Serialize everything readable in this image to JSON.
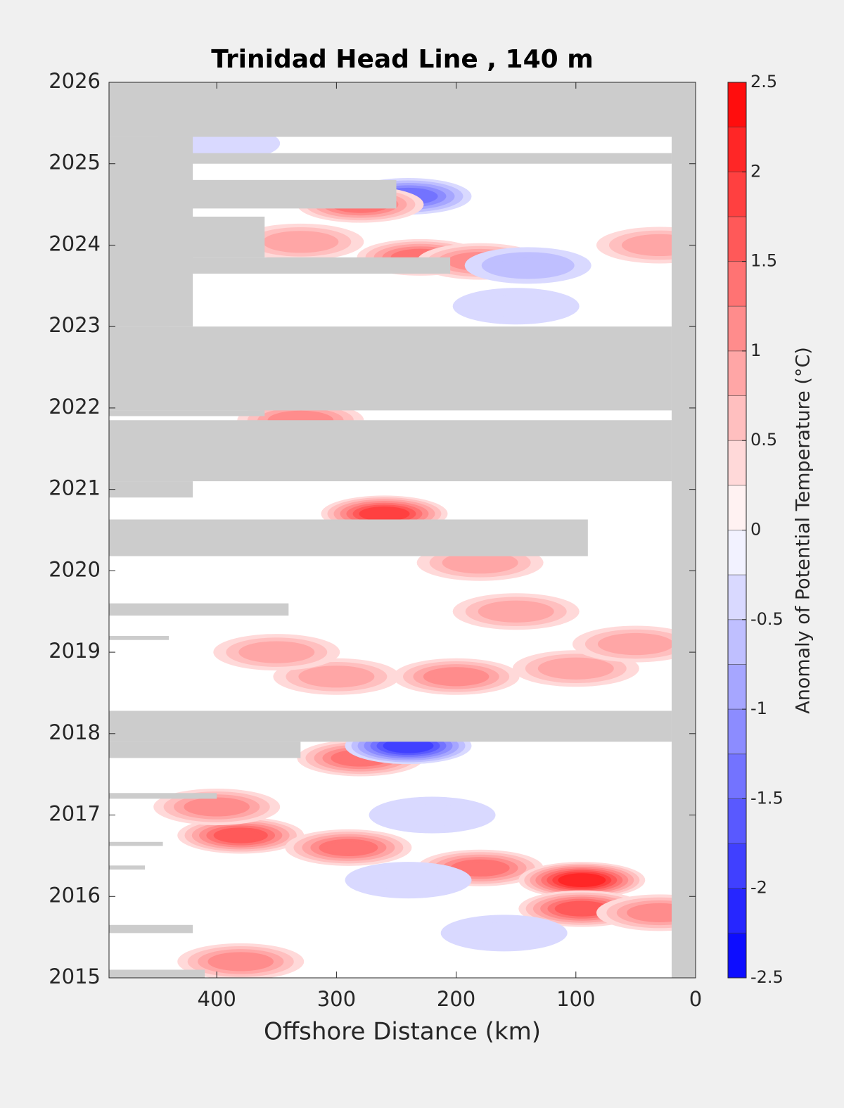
{
  "chart_data": {
    "type": "contour",
    "title": "Trinidad Head Line , 140 m",
    "xlabel": "Offshore Distance (km)",
    "colorbar_label": "Anomaly of Potential Temperature (°C)",
    "xlim": [
      490,
      0
    ],
    "xticks": [
      400,
      300,
      200,
      100,
      0
    ],
    "ylim": [
      2015,
      2026
    ],
    "yticks": [
      2015,
      2016,
      2017,
      2018,
      2019,
      2020,
      2021,
      2022,
      2023,
      2024,
      2025,
      2026
    ],
    "clim": [
      -2.5,
      2.5
    ],
    "cticks": [
      -2.5,
      -2,
      -1.5,
      -1,
      -0.5,
      0,
      0.5,
      1,
      1.5,
      2,
      2.5
    ],
    "clevels": [
      -2.5,
      -2.25,
      -2,
      -1.75,
      -1.5,
      -1.25,
      -1,
      -0.75,
      -0.5,
      -0.25,
      0,
      0.25,
      0.5,
      0.75,
      1,
      1.25,
      1.5,
      1.75,
      2,
      2.25,
      2.5
    ],
    "cmap_low": "#0000ff",
    "cmap_mid": "#ffffff",
    "cmap_high": "#ff0000",
    "missing_color": "#cccccc",
    "anomalies": {
      "x": [
        240,
        280,
        330,
        230,
        180,
        140,
        30,
        400,
        150,
        330,
        260,
        180,
        300,
        200,
        100,
        50,
        150,
        280,
        240,
        380,
        290,
        180,
        95,
        95,
        380,
        400,
        220,
        350,
        30,
        240,
        160
      ],
      "y": [
        2024.6,
        2024.5,
        2024.04,
        2023.85,
        2023.8,
        2023.75,
        2024.0,
        2025.25,
        2023.25,
        2021.85,
        2020.7,
        2020.1,
        2018.7,
        2018.7,
        2018.8,
        2019.1,
        2019.5,
        2017.7,
        2017.85,
        2016.75,
        2016.6,
        2016.35,
        2016.2,
        2015.85,
        2015.2,
        2017.1,
        2017.0,
        2019.0,
        2015.8,
        2016.2,
        2015.55
      ],
      "values": [
        -1.5,
        1.5,
        1.0,
        1.5,
        1.25,
        -0.75,
        1.0,
        -0.5,
        -0.5,
        1.25,
        2.0,
        1.0,
        1.0,
        1.25,
        1.0,
        1.0,
        1.0,
        1.5,
        -2.0,
        1.75,
        1.5,
        1.5,
        2.25,
        1.75,
        1.25,
        1.25,
        -0.5,
        1.0,
        1.25,
        -0.5,
        -0.5
      ]
    },
    "no_data": [
      {
        "x": [
          490,
          0
        ],
        "y": [
          2025.33,
          2026
        ]
      },
      {
        "x": [
          20,
          0
        ],
        "y": [
          2015,
          2026
        ]
      },
      {
        "x": [
          490,
          420
        ],
        "y": [
          2023,
          2025.33
        ]
      },
      {
        "x": [
          490,
          20
        ],
        "y": [
          2025.0,
          2025.13
        ]
      },
      {
        "x": [
          490,
          250
        ],
        "y": [
          2024.45,
          2024.8
        ]
      },
      {
        "x": [
          490,
          360
        ],
        "y": [
          2023.85,
          2024.35
        ]
      },
      {
        "x": [
          490,
          205
        ],
        "y": [
          2023.65,
          2023.85
        ]
      },
      {
        "x": [
          490,
          440
        ],
        "y": [
          2023.0,
          2023.65
        ]
      },
      {
        "x": [
          490,
          20
        ],
        "y": [
          2021.97,
          2023.0
        ]
      },
      {
        "x": [
          490,
          360
        ],
        "y": [
          2021.9,
          2021.97
        ]
      },
      {
        "x": [
          490,
          20
        ],
        "y": [
          2021.1,
          2021.85
        ]
      },
      {
        "x": [
          490,
          420
        ],
        "y": [
          2020.9,
          2021.1
        ]
      },
      {
        "x": [
          490,
          90
        ],
        "y": [
          2020.18,
          2020.63
        ]
      },
      {
        "x": [
          490,
          340
        ],
        "y": [
          2019.45,
          2019.6
        ]
      },
      {
        "x": [
          490,
          440
        ],
        "y": [
          2019.15,
          2019.2
        ]
      },
      {
        "x": [
          490,
          20
        ],
        "y": [
          2017.9,
          2018.28
        ]
      },
      {
        "x": [
          490,
          330
        ],
        "y": [
          2017.7,
          2017.9
        ]
      },
      {
        "x": [
          490,
          400
        ],
        "y": [
          2017.2,
          2017.27
        ]
      },
      {
        "x": [
          490,
          445
        ],
        "y": [
          2016.62,
          2016.67
        ]
      },
      {
        "x": [
          490,
          460
        ],
        "y": [
          2016.33,
          2016.38
        ]
      },
      {
        "x": [
          490,
          420
        ],
        "y": [
          2015.55,
          2015.65
        ]
      },
      {
        "x": [
          490,
          410
        ],
        "y": [
          2015.0,
          2015.1
        ]
      }
    ]
  }
}
